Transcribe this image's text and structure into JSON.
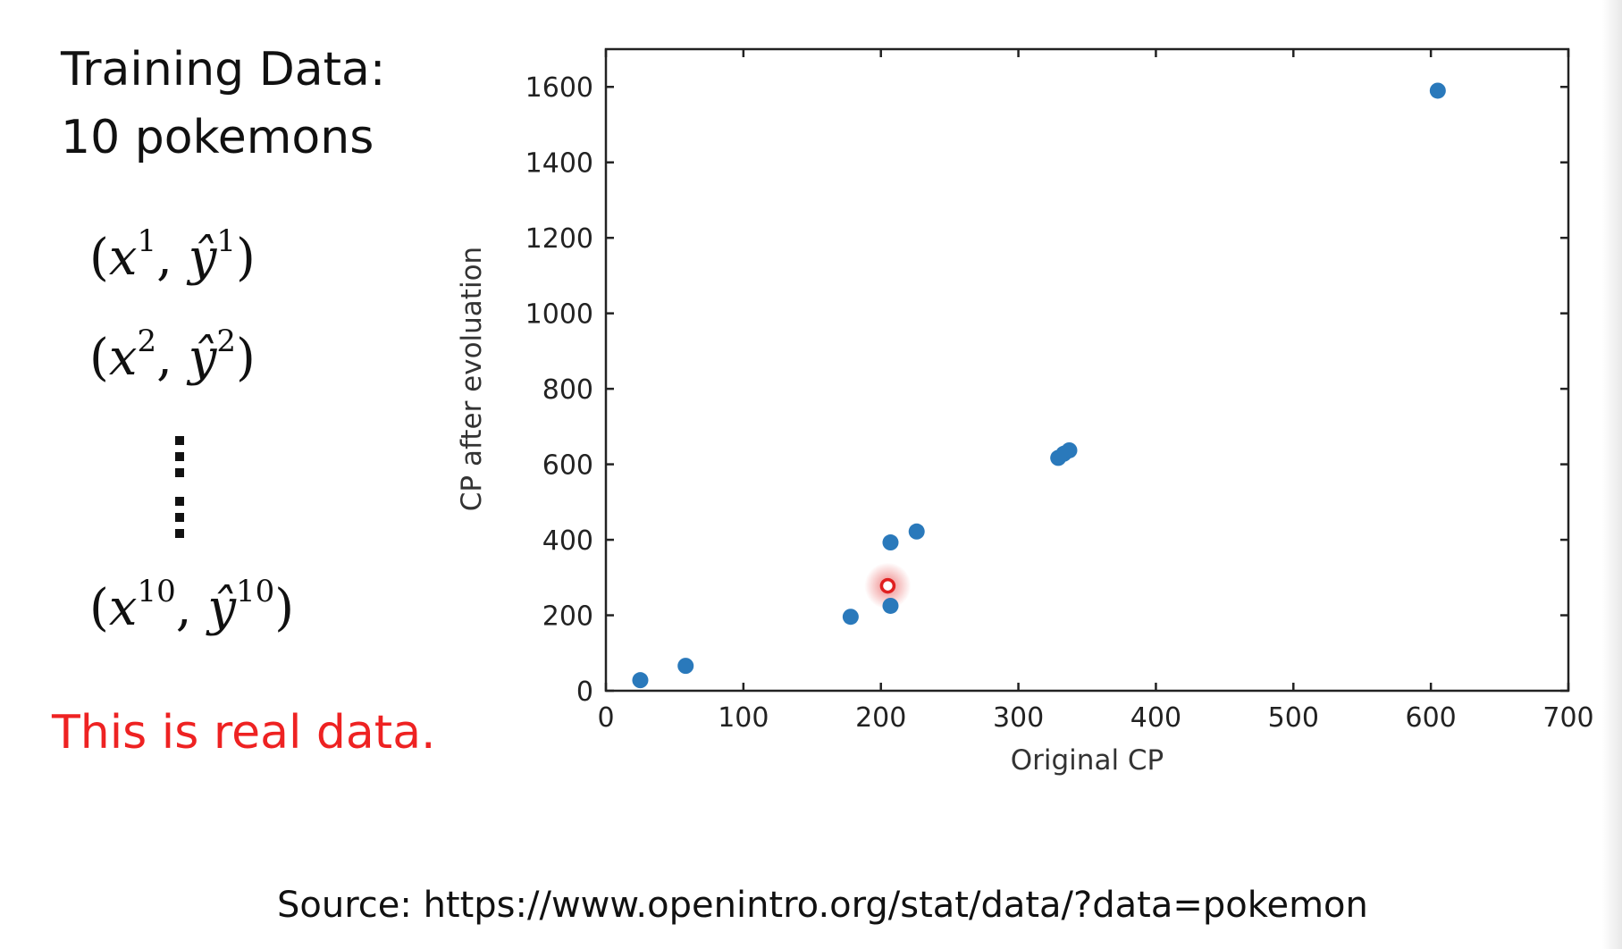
{
  "slide": {
    "title_line1": "Training Data:",
    "title_line2": "10 pokemons",
    "pairs": [
      {
        "x": "x",
        "x_sup": "1",
        "y": "ŷ",
        "y_sup": "1"
      },
      {
        "x": "x",
        "x_sup": "2",
        "y": "ŷ",
        "y_sup": "2"
      },
      {
        "x": "x",
        "x_sup": "10",
        "y": "ŷ",
        "y_sup": "10"
      }
    ],
    "note": "This is real data.",
    "note_color": "#ee2222",
    "source": "Source: https://www.openintro.org/stat/data/?data=pokemon"
  },
  "chart_data": {
    "type": "scatter",
    "title": "",
    "xlabel": "Original CP",
    "ylabel": "CP after evoluation",
    "xlim": [
      0,
      700
    ],
    "ylim": [
      0,
      1700
    ],
    "xticks": [
      0,
      100,
      200,
      300,
      400,
      500,
      600,
      700
    ],
    "yticks": [
      0,
      200,
      400,
      600,
      800,
      1000,
      1200,
      1400,
      1600
    ],
    "grid": false,
    "series": [
      {
        "color": "#2a79bb",
        "points": [
          {
            "x": 25,
            "y": 28
          },
          {
            "x": 58,
            "y": 66
          },
          {
            "x": 178,
            "y": 196
          },
          {
            "x": 207,
            "y": 225
          },
          {
            "x": 207,
            "y": 393
          },
          {
            "x": 226,
            "y": 422
          },
          {
            "x": 329,
            "y": 617
          },
          {
            "x": 333,
            "y": 628
          },
          {
            "x": 337,
            "y": 637
          },
          {
            "x": 605,
            "y": 1590
          }
        ]
      }
    ],
    "highlight": {
      "x": 205,
      "y": 278,
      "color": "#e02020"
    }
  }
}
